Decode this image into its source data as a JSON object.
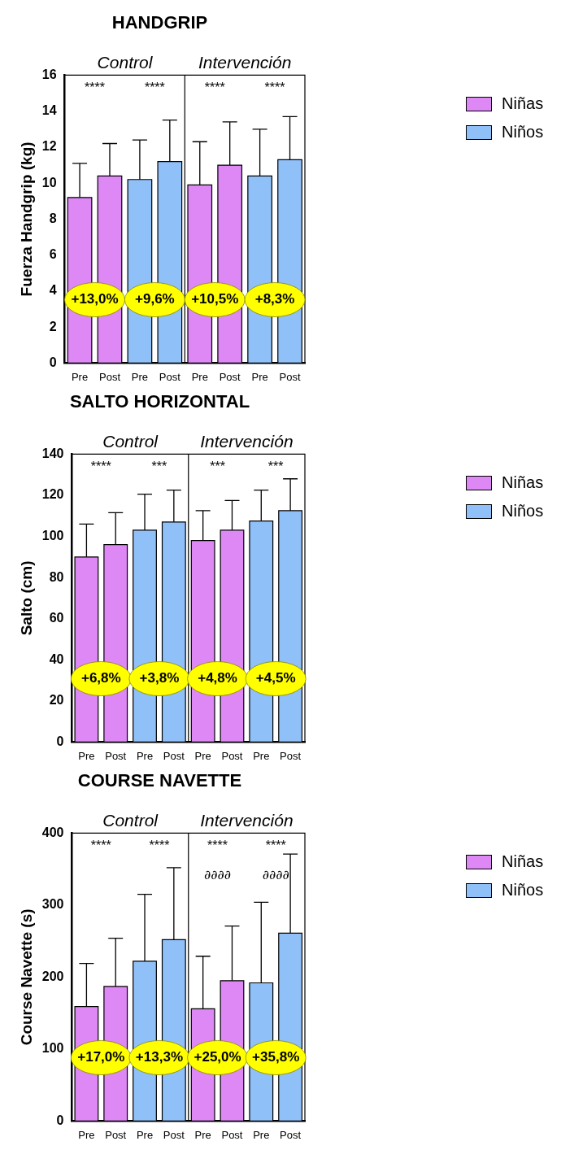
{
  "chart_data": [
    {
      "type": "bar",
      "title": "HANDGRIP",
      "ylabel": "Fuerza Handgrip (kg)",
      "categories": [
        "Pre",
        "Post",
        "Pre",
        "Post",
        "Pre",
        "Post",
        "Pre",
        "Post"
      ],
      "stacked": true,
      "series": [
        {
          "name": "Niñas",
          "color": "#dd88f5",
          "values": [
            9.2,
            10.4,
            null,
            null,
            9.9,
            11.0,
            null,
            null
          ],
          "errors": [
            [
              9.2,
              11.1
            ],
            [
              10.4,
              12.2
            ],
            null,
            null,
            [
              9.9,
              12.3
            ],
            [
              11.0,
              13.4
            ],
            null,
            null
          ]
        },
        {
          "name": "Niños",
          "color": "#90c0f8",
          "values": [
            null,
            null,
            10.2,
            11.2,
            null,
            null,
            10.4,
            11.3
          ],
          "errors": [
            null,
            null,
            [
              10.2,
              12.4
            ],
            [
              11.2,
              13.5
            ],
            null,
            null,
            [
              10.4,
              13.0
            ],
            [
              11.3,
              13.7
            ]
          ]
        }
      ],
      "ylim": [
        0,
        16
      ],
      "yticks": [
        0,
        2,
        4,
        6,
        8,
        10,
        12,
        14,
        16
      ],
      "legend": "right",
      "annotations": [
        "Control",
        "Intervención",
        "****",
        "****",
        "****",
        "****",
        "+13,0%",
        "+9,6%",
        "+10,5%",
        "+8,3%"
      ]
    },
    {
      "type": "bar",
      "title": "SALTO HORIZONTAL",
      "ylabel": "Salto (cm)",
      "categories": [
        "Pre",
        "Post",
        "Pre",
        "Post",
        "Pre",
        "Post",
        "Pre",
        "Post"
      ],
      "stacked": true,
      "series": [
        {
          "name": "Niñas",
          "color": "#dd88f5",
          "values": [
            90,
            96,
            null,
            null,
            98,
            103,
            null,
            null
          ],
          "errors": [
            [
              90,
              106
            ],
            [
              96,
              111.5
            ],
            null,
            null,
            [
              98,
              112.5
            ],
            [
              103,
              117.5
            ],
            null,
            null
          ]
        },
        {
          "name": "Niños",
          "color": "#90c0f8",
          "values": [
            null,
            null,
            103,
            107,
            null,
            null,
            107.5,
            112.5
          ],
          "errors": [
            null,
            null,
            [
              103,
              120.5
            ],
            [
              107,
              122.5
            ],
            null,
            null,
            [
              107.5,
              122.5
            ],
            [
              112.5,
              128
            ]
          ]
        }
      ],
      "ylim": [
        0,
        140
      ],
      "yticks": [
        0,
        20,
        40,
        60,
        80,
        100,
        120,
        140
      ],
      "legend": "right",
      "annotations": [
        "Control",
        "Intervención",
        "****",
        "***",
        "***",
        "***",
        "+6,8%",
        "+3,8%",
        "+4,8%",
        "+4,5%"
      ]
    },
    {
      "type": "bar",
      "title": "COURSE NAVETTE",
      "ylabel": "Course Navette (s)",
      "categories": [
        "Pre",
        "Post",
        "Pre",
        "Post",
        "Pre",
        "Post",
        "Pre",
        "Post"
      ],
      "stacked": true,
      "series": [
        {
          "name": "Niñas",
          "color": "#dd88f5",
          "values": [
            159,
            187,
            null,
            null,
            156,
            195,
            null,
            null
          ],
          "errors": [
            [
              159,
              219
            ],
            [
              187,
              254
            ],
            null,
            null,
            [
              156,
              229
            ],
            [
              195,
              271
            ],
            null,
            null
          ]
        },
        {
          "name": "Niños",
          "color": "#90c0f8",
          "values": [
            null,
            null,
            222,
            252,
            null,
            null,
            192,
            261
          ],
          "errors": [
            null,
            null,
            [
              222,
              315
            ],
            [
              252,
              352
            ],
            null,
            null,
            [
              192,
              304
            ],
            [
              261,
              371
            ]
          ]
        }
      ],
      "ylim": [
        0,
        400
      ],
      "yticks": [
        0,
        100,
        200,
        300,
        400
      ],
      "legend": "right",
      "annotations": [
        "Control",
        "Intervención",
        "****",
        "****",
        "****",
        "****",
        "+17,0%",
        "+13,3%",
        "+25,0%",
        "+35,8%",
        "∂∂∂∂",
        "∂∂∂∂"
      ]
    }
  ]
}
